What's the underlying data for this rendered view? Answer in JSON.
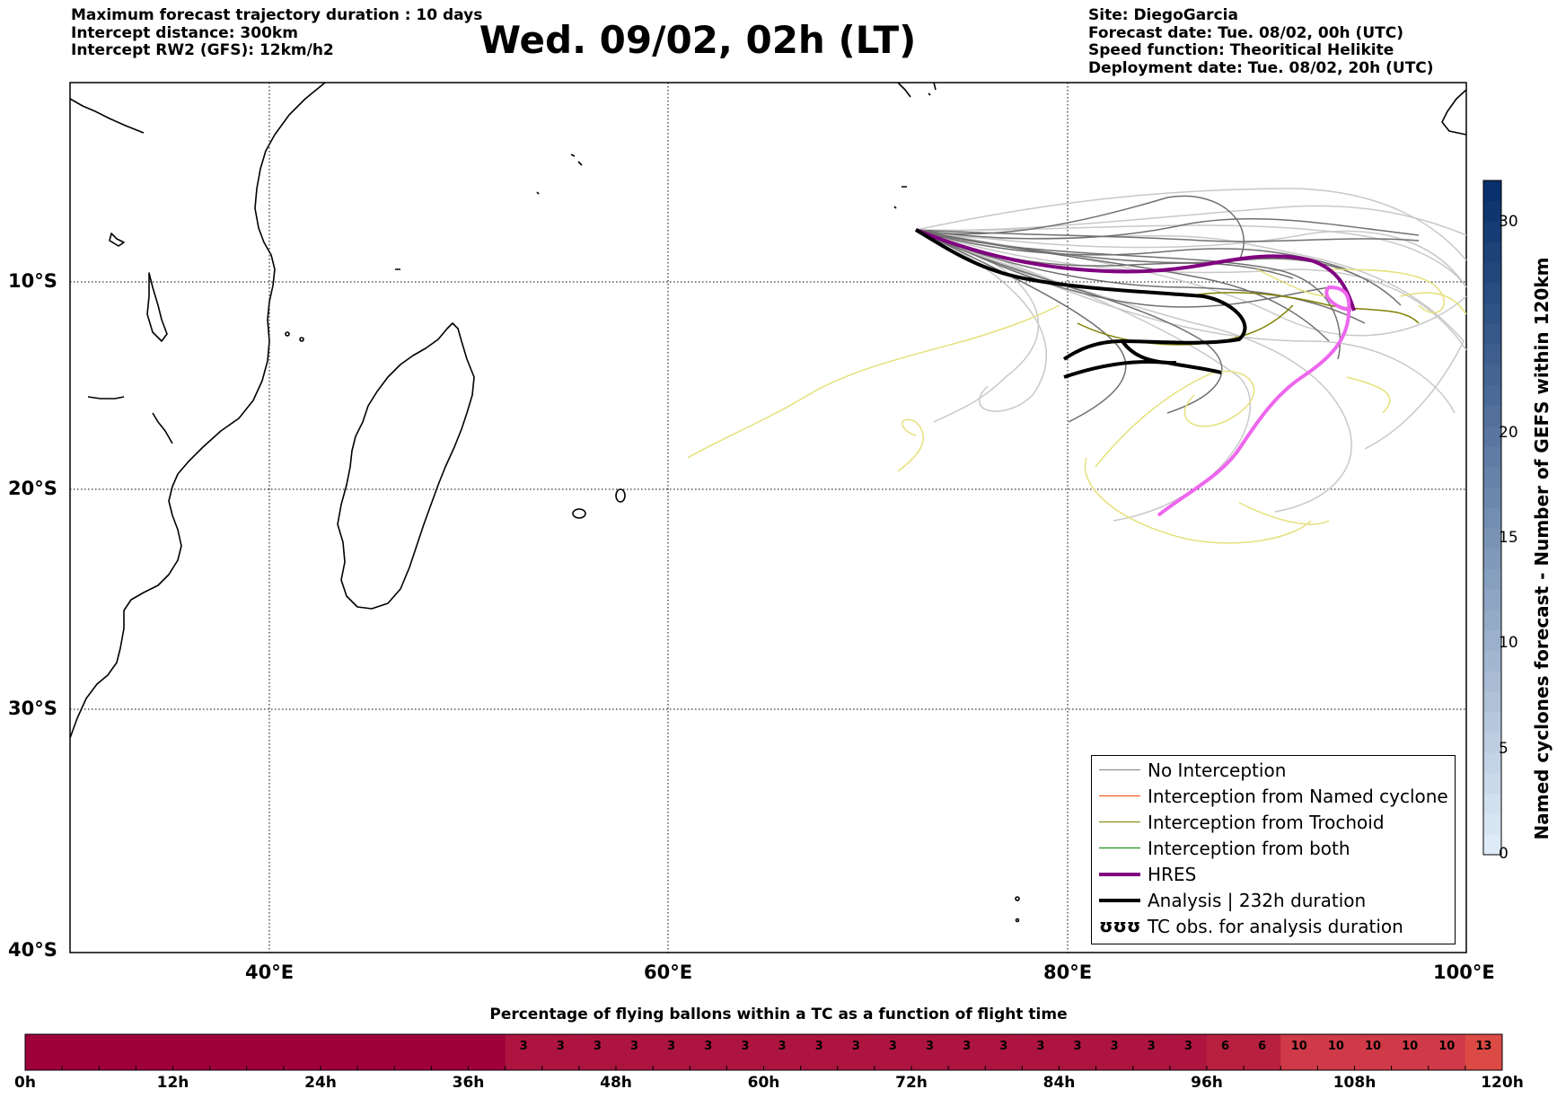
{
  "header_left": {
    "line1": "Maximum forecast trajectory duration : 10 days",
    "line2": "Intercept distance: 300km",
    "line3": "Intercept RW2 (GFS):  12km/h2"
  },
  "title": "Wed. 09/02, 02h (LT)",
  "header_right": {
    "site": "Site: DiegoGarcia",
    "forecast_date": "Forecast date: Tue. 08/02, 00h (UTC)",
    "speed_function": "Speed function: Theoritical Helikite",
    "deployment_date": "Deployment date: Tue. 08/02, 20h (UTC)"
  },
  "map": {
    "lon_ticks": [
      "40°E",
      "60°E",
      "80°E",
      "100°E"
    ],
    "lat_ticks": [
      "10°S",
      "20°S",
      "30°S",
      "40°S"
    ]
  },
  "legend": {
    "items": [
      {
        "label": "No Interception",
        "color": "#808080",
        "style": "thin"
      },
      {
        "label": "Interception from Named cyclone",
        "color": "#ff4500",
        "style": "thin"
      },
      {
        "label": "Interception from Trochoid",
        "color": "#808000",
        "style": "thin"
      },
      {
        "label": "Interception from both",
        "color": "#008000",
        "style": "thin"
      },
      {
        "label": "HRES",
        "color": "#800080",
        "style": "thick"
      },
      {
        "label": "Analysis | 232h duration",
        "color": "#000000",
        "style": "thick"
      },
      {
        "label": "TC obs. for analysis duration",
        "symbol": "ʊʊʊ"
      }
    ]
  },
  "colorbar_right": {
    "label": "Named cyclones forecast - Number of GEFS within 120km",
    "ticks": [
      "0",
      "5",
      "10",
      "15",
      "20",
      "30"
    ],
    "max": 33
  },
  "bottom_bar": {
    "title": "Percentage of flying ballons within a TC as a function of flight time",
    "hour_labels": [
      "0h",
      "12h",
      "24h",
      "36h",
      "48h",
      "60h",
      "72h",
      "84h",
      "96h",
      "108h",
      "120h"
    ],
    "cells": [
      0,
      0,
      0,
      0,
      0,
      0,
      0,
      0,
      0,
      0,
      0,
      0,
      0,
      3,
      3,
      3,
      3,
      3,
      3,
      3,
      3,
      3,
      3,
      3,
      3,
      3,
      3,
      3,
      3,
      3,
      3,
      3,
      6,
      6,
      10,
      10,
      10,
      10,
      10,
      13
    ]
  }
}
